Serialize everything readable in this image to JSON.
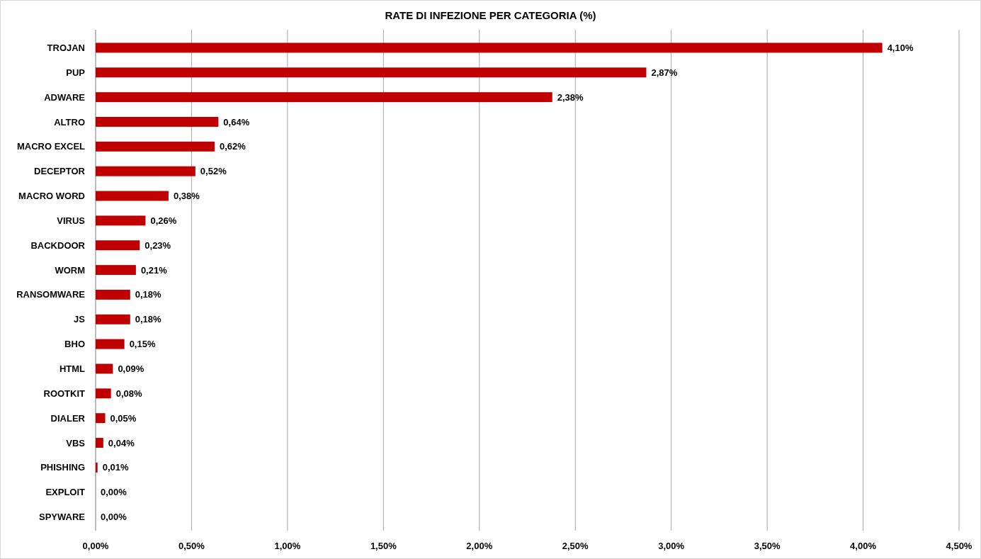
{
  "chart_data": {
    "type": "bar",
    "orientation": "horizontal",
    "title": "RATE DI INFEZIONE PER CATEGORIA (%)",
    "categories": [
      "TROJAN",
      "PUP",
      "ADWARE",
      "ALTRO",
      "MACRO EXCEL",
      "DECEPTOR",
      "MACRO WORD",
      "VIRUS",
      "BACKDOOR",
      "WORM",
      "RANSOMWARE",
      "JS",
      "BHO",
      "HTML",
      "ROOTKIT",
      "DIALER",
      "VBS",
      "PHISHING",
      "EXPLOIT",
      "SPYWARE"
    ],
    "values": [
      4.1,
      2.87,
      2.38,
      0.64,
      0.62,
      0.52,
      0.38,
      0.26,
      0.23,
      0.21,
      0.18,
      0.18,
      0.15,
      0.09,
      0.08,
      0.05,
      0.04,
      0.01,
      0.0,
      0.0
    ],
    "value_labels": [
      "4,10%",
      "2,87%",
      "2,38%",
      "0,64%",
      "0,62%",
      "0,52%",
      "0,38%",
      "0,26%",
      "0,23%",
      "0,21%",
      "0,18%",
      "0,18%",
      "0,15%",
      "0,09%",
      "0,08%",
      "0,05%",
      "0,04%",
      "0,01%",
      "0,00%",
      "0,00%"
    ],
    "color": "#c00000",
    "xlim": [
      0,
      4.5
    ],
    "xticks": [
      {
        "value": 0,
        "label": "0,00%"
      },
      {
        "value": 0.5,
        "label": "0,50%"
      },
      {
        "value": 1,
        "label": "1,00%"
      },
      {
        "value": 1.5,
        "label": "1,50%"
      },
      {
        "value": 2,
        "label": "2,00%"
      },
      {
        "value": 2.5,
        "label": "2,50%"
      },
      {
        "value": 3,
        "label": "3,00%"
      },
      {
        "value": 3.5,
        "label": "3,50%"
      },
      {
        "value": 4,
        "label": "4,00%"
      },
      {
        "value": 4.5,
        "label": "4,50%"
      }
    ],
    "grid": "x"
  }
}
